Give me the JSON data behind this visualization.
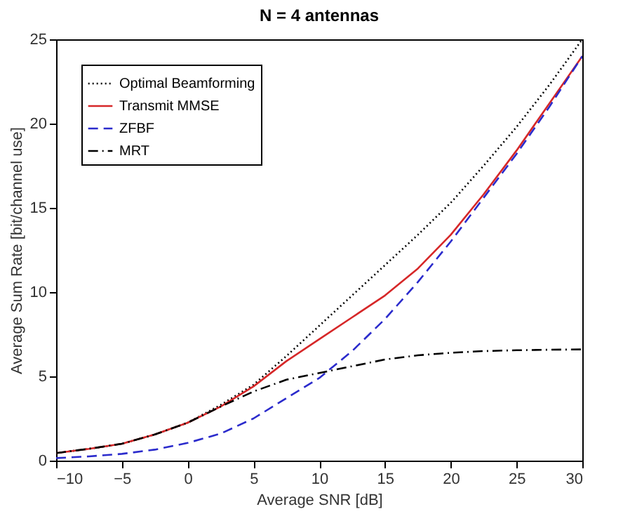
{
  "chart_data": {
    "type": "line",
    "title": "N = 4 antennas",
    "xlabel": "Average SNR [dB]",
    "ylabel": "Average Sum Rate [bit/channel use]",
    "x": [
      -10,
      -7.5,
      -5,
      -2.5,
      0,
      2.5,
      5,
      7.5,
      10,
      12.5,
      15,
      17.5,
      20,
      22.5,
      25,
      27.5,
      30
    ],
    "series": [
      {
        "name": "Optimal Beamforming",
        "color": "#000000",
        "line_style": "dotted",
        "values": [
          0.45,
          0.7,
          1.0,
          1.55,
          2.25,
          3.3,
          4.5,
          6.2,
          8.0,
          9.8,
          11.6,
          13.4,
          15.3,
          17.5,
          19.8,
          22.3,
          25.0
        ]
      },
      {
        "name": "Transmit MMSE",
        "color": "#d62728",
        "line_style": "solid",
        "values": [
          0.45,
          0.7,
          1.0,
          1.55,
          2.25,
          3.2,
          4.4,
          5.9,
          7.2,
          8.5,
          9.8,
          11.4,
          13.4,
          15.8,
          18.4,
          21.2,
          24.0
        ]
      },
      {
        "name": "ZFBF",
        "color": "#2b2bcc",
        "line_style": "dashed",
        "values": [
          0.15,
          0.25,
          0.4,
          0.65,
          1.05,
          1.6,
          2.5,
          3.7,
          4.9,
          6.5,
          8.4,
          10.6,
          13.0,
          15.6,
          18.2,
          21.0,
          24.0
        ]
      },
      {
        "name": "MRT",
        "color": "#000000",
        "line_style": "dashdot",
        "values": [
          0.45,
          0.7,
          1.0,
          1.55,
          2.25,
          3.2,
          4.1,
          4.8,
          5.2,
          5.6,
          6.0,
          6.25,
          6.4,
          6.5,
          6.55,
          6.58,
          6.6
        ]
      }
    ],
    "xlim": [
      -10,
      30
    ],
    "xticks": [
      -10,
      -5,
      0,
      5,
      10,
      15,
      20,
      25,
      30
    ],
    "ylim": [
      0,
      25
    ],
    "yticks": [
      0,
      5,
      10,
      15,
      20,
      25
    ],
    "grid": false,
    "legend": "top left"
  }
}
